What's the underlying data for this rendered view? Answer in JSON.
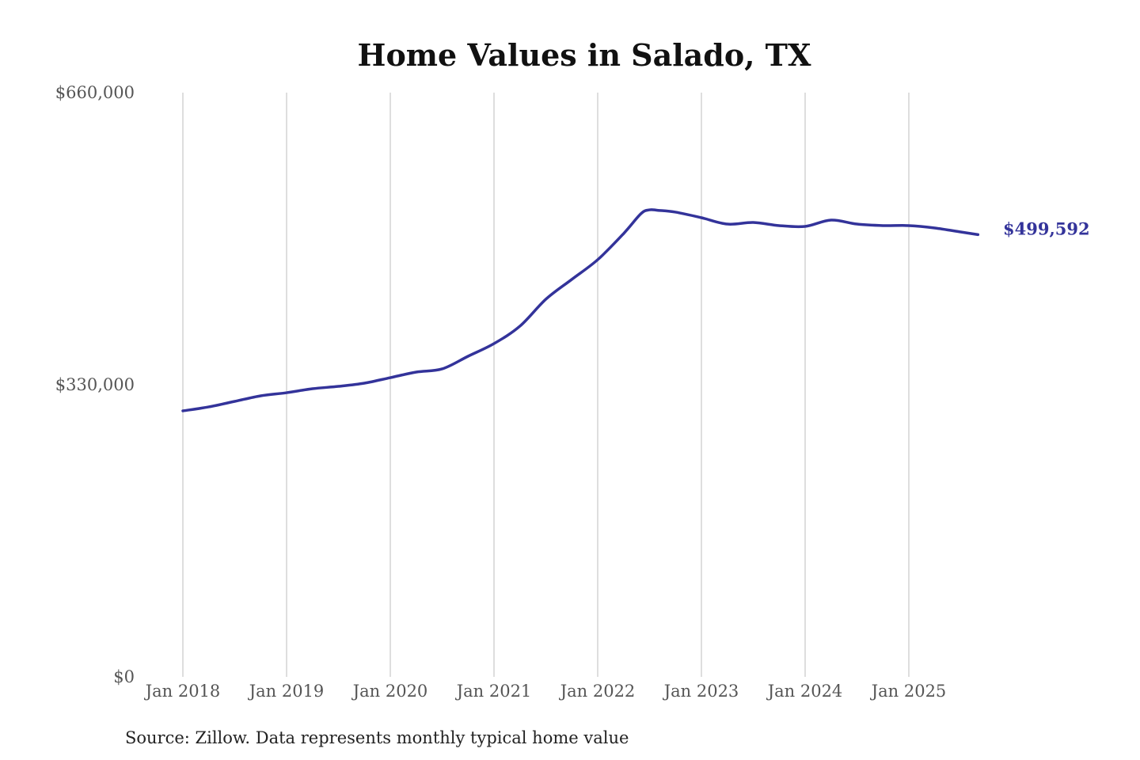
{
  "chart_data": {
    "type": "line",
    "title": "Home Values in Salado, TX",
    "source": "Source: Zillow. Data represents monthly typical home value",
    "ylim": [
      0,
      660000
    ],
    "y_ticks": [
      {
        "value": 0,
        "label": "$0"
      },
      {
        "value": 330000,
        "label": "$330,000"
      },
      {
        "value": 660000,
        "label": "$660,000"
      }
    ],
    "x_ticks": [
      {
        "value": "2018-01",
        "label": "Jan 2018"
      },
      {
        "value": "2019-01",
        "label": "Jan 2019"
      },
      {
        "value": "2020-01",
        "label": "Jan 2020"
      },
      {
        "value": "2021-01",
        "label": "Jan 2021"
      },
      {
        "value": "2022-01",
        "label": "Jan 2022"
      },
      {
        "value": "2023-01",
        "label": "Jan 2023"
      },
      {
        "value": "2024-01",
        "label": "Jan 2024"
      },
      {
        "value": "2025-01",
        "label": "Jan 2025"
      }
    ],
    "grid": {
      "vertical": true,
      "horizontal": false
    },
    "line_color": "#33339a",
    "end_label": "$499,592",
    "series": [
      {
        "points": [
          [
            "2018-01",
            300500
          ],
          [
            "2018-04",
            305000
          ],
          [
            "2018-07",
            311200
          ],
          [
            "2018-10",
            317500
          ],
          [
            "2019-01",
            321000
          ],
          [
            "2019-04",
            325500
          ],
          [
            "2019-07",
            328200
          ],
          [
            "2019-10",
            331800
          ],
          [
            "2020-01",
            338000
          ],
          [
            "2020-04",
            344300
          ],
          [
            "2020-07",
            347900
          ],
          [
            "2020-10",
            362200
          ],
          [
            "2021-01",
            376500
          ],
          [
            "2021-04",
            396200
          ],
          [
            "2021-07",
            426600
          ],
          [
            "2021-10",
            449000
          ],
          [
            "2022-01",
            471300
          ],
          [
            "2022-04",
            500800
          ],
          [
            "2022-06",
            523200
          ],
          [
            "2022-07",
            527600
          ],
          [
            "2022-08",
            527000
          ],
          [
            "2022-10",
            525000
          ],
          [
            "2023-01",
            518700
          ],
          [
            "2023-04",
            511500
          ],
          [
            "2023-07",
            513300
          ],
          [
            "2023-10",
            509800
          ],
          [
            "2024-01",
            508900
          ],
          [
            "2024-04",
            516000
          ],
          [
            "2024-07",
            511500
          ],
          [
            "2024-10",
            509800
          ],
          [
            "2025-01",
            509800
          ],
          [
            "2025-04",
            507100
          ],
          [
            "2025-07",
            502600
          ],
          [
            "2025-09",
            499592
          ]
        ]
      }
    ]
  }
}
